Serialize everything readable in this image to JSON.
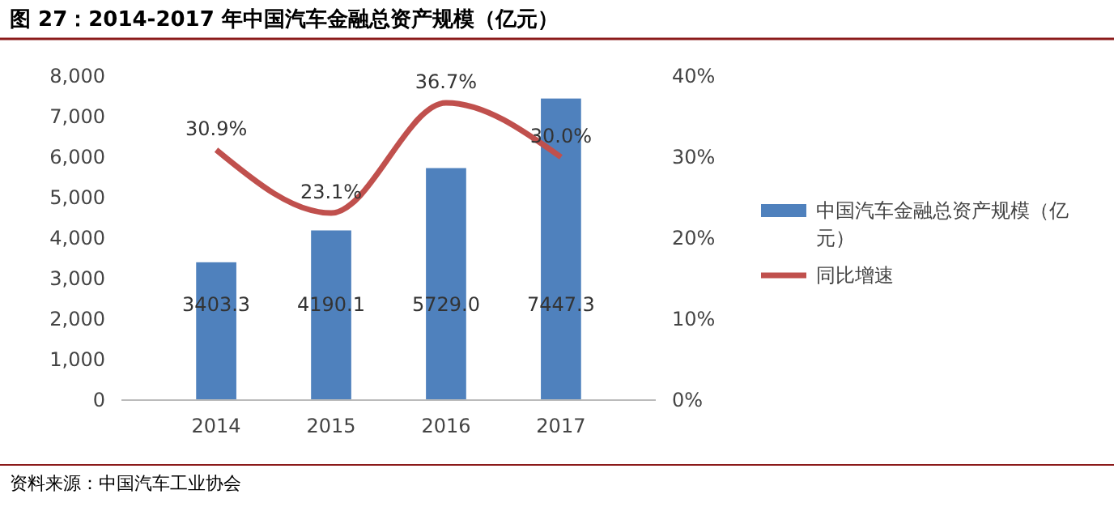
{
  "chart_data": {
    "type": "bar",
    "title": "图 27：2014-2017 年中国汽车金融总资产规模（亿元）",
    "categories": [
      "2014",
      "2015",
      "2016",
      "2017"
    ],
    "series": [
      {
        "name": "中国汽车金融总资产规模（亿元）",
        "color": "#4f81bd",
        "values": [
          3403.3,
          4190.1,
          5729.0,
          7447.3
        ],
        "value_labels": [
          "3403.3",
          "4190.1",
          "5729.0",
          "7447.3"
        ]
      },
      {
        "name": "同比增速",
        "type": "line",
        "axis": "y2",
        "color": "#c0504d",
        "values": [
          30.9,
          23.1,
          36.7,
          30.0
        ],
        "value_labels": [
          "30.9%",
          "23.1%",
          "36.7%",
          "30.0%"
        ]
      }
    ],
    "ylim": [
      0,
      8000
    ],
    "yticks": [
      {
        "value": 0,
        "label": "0"
      },
      {
        "value": 1000,
        "label": "1,000"
      },
      {
        "value": 2000,
        "label": "2,000"
      },
      {
        "value": 3000,
        "label": "3,000"
      },
      {
        "value": 4000,
        "label": "4,000"
      },
      {
        "value": 5000,
        "label": "5,000"
      },
      {
        "value": 6000,
        "label": "6,000"
      },
      {
        "value": 7000,
        "label": "7,000"
      },
      {
        "value": 8000,
        "label": "8,000"
      }
    ],
    "y2lim": [
      0,
      40
    ],
    "y2ticks": [
      {
        "value": 0,
        "label": "0%"
      },
      {
        "value": 10,
        "label": "10%"
      },
      {
        "value": 20,
        "label": "20%"
      },
      {
        "value": 30,
        "label": "30%"
      },
      {
        "value": 40,
        "label": "40%"
      }
    ],
    "legend": "right",
    "marker": "none",
    "line_style": "solid",
    "grid": false,
    "annotations": [
      "资料来源：中国汽车工业协会"
    ]
  }
}
